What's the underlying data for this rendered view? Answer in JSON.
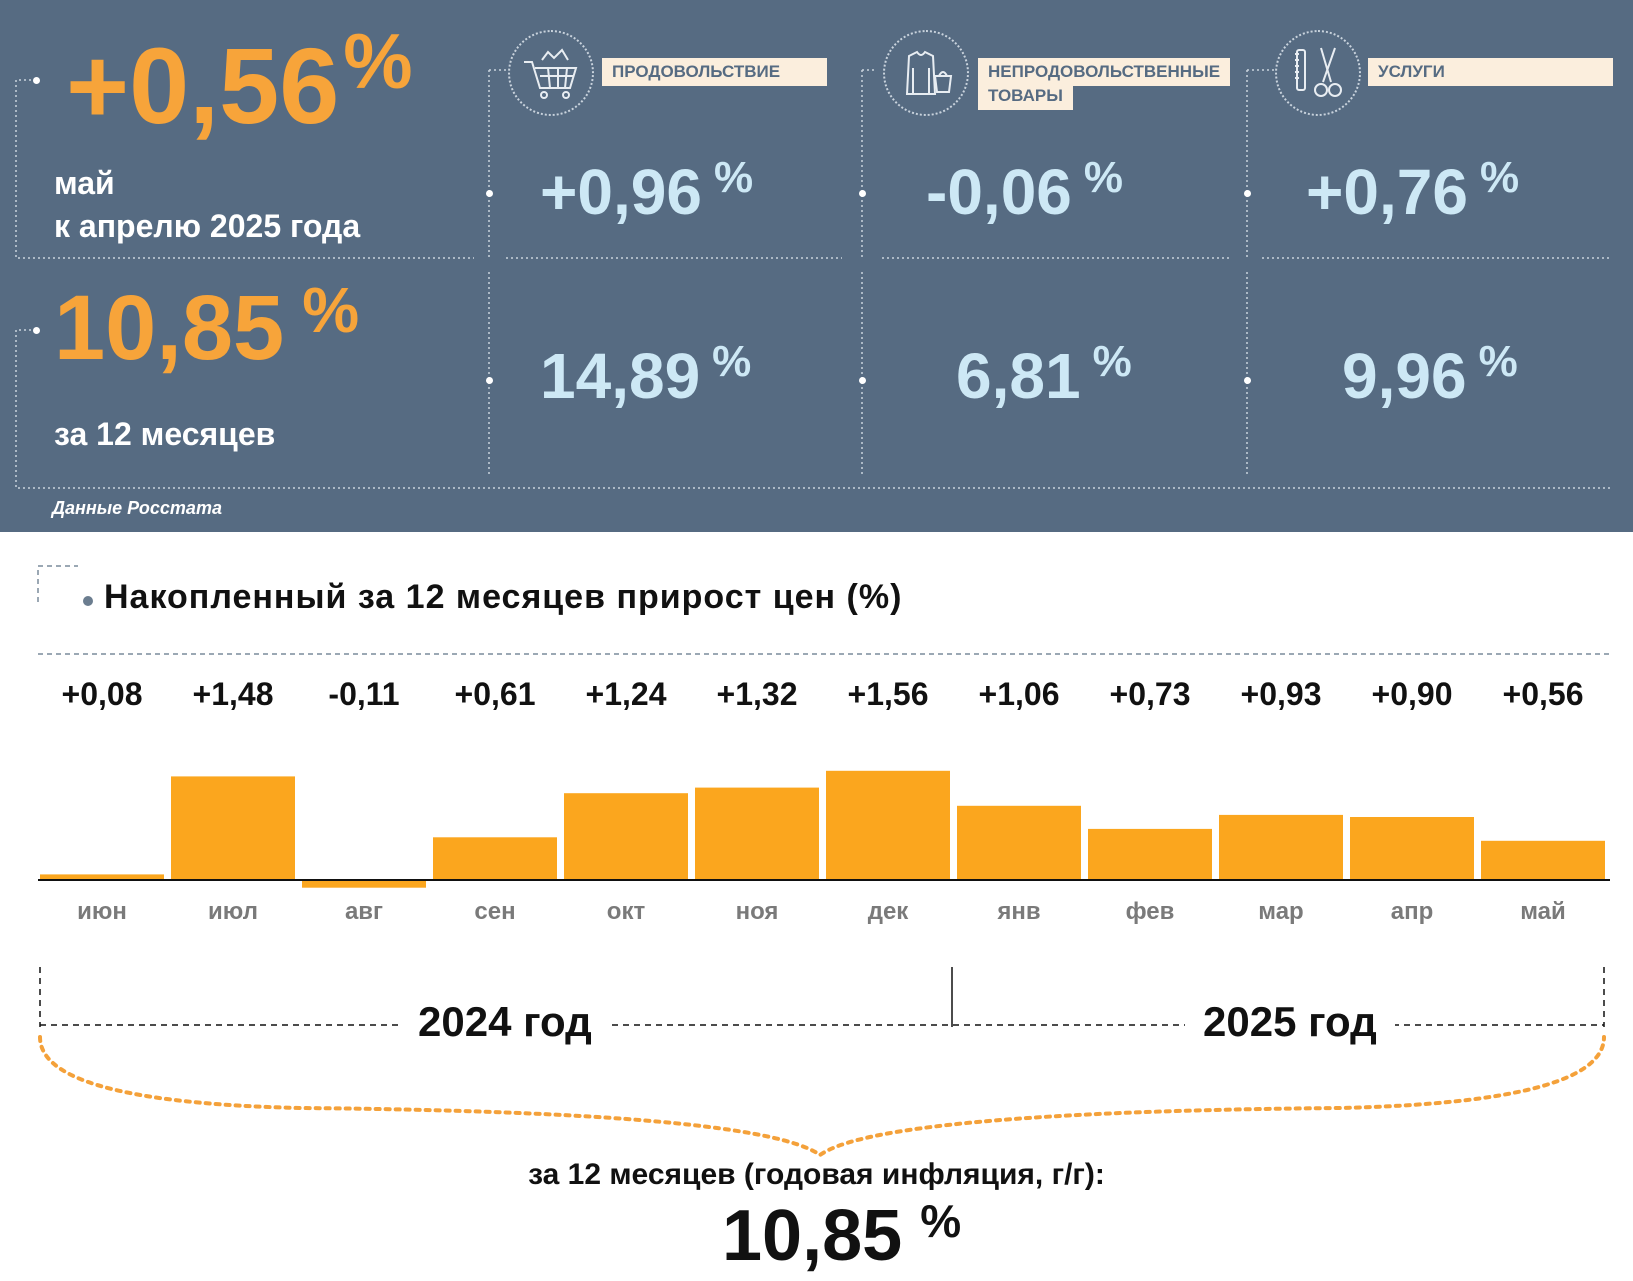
{
  "colors": {
    "panel_bg": "#566b82",
    "accent_orange": "#f7a43a",
    "value_blue": "#cde8f5",
    "label_bg": "#fbeedd",
    "bar": "#fba61e"
  },
  "summary": {
    "month": {
      "value": "+0,56",
      "pct": "%",
      "line1": "май",
      "line2": "к апрелю 2025 года"
    },
    "year": {
      "value": "10,85",
      "pct": "%",
      "label": "за 12 месяцев"
    },
    "categories": [
      {
        "name": "ПРОДОВОЛЬСТВИЕ",
        "icon": "shopping-cart-icon",
        "monthly": "+0,96",
        "annual": "14,89",
        "pct": "%"
      },
      {
        "name": "НЕПРОДОВОЛЬСТВЕННЫЕ ТОВАРЫ",
        "name_line1": "НЕПРОДОВОЛЬСТВЕННЫЕ",
        "name_line2": "ТОВАРЫ",
        "icon": "clothes-bag-icon",
        "monthly": "-0,06",
        "annual": "6,81",
        "pct": "%"
      },
      {
        "name": "УСЛУГИ",
        "icon": "comb-scissors-icon",
        "monthly": "+0,76",
        "annual": "9,96",
        "pct": "%"
      }
    ],
    "source": "Данные Росстата"
  },
  "chart_data": {
    "type": "bar",
    "title": "Накопленный за 12 месяцев прирост цен (%)",
    "categories": [
      "июн",
      "июл",
      "авг",
      "сен",
      "окт",
      "ноя",
      "дек",
      "янв",
      "фев",
      "мар",
      "апр",
      "май"
    ],
    "values": [
      0.08,
      1.48,
      -0.11,
      0.61,
      1.24,
      1.32,
      1.56,
      1.06,
      0.73,
      0.93,
      0.9,
      0.56
    ],
    "value_labels": [
      "+0,08",
      "+1,48",
      "-0,11",
      "+0,61",
      "+1,24",
      "+1,32",
      "+1,56",
      "+1,06",
      "+0,73",
      "+0,93",
      "+0,90",
      "+0,56"
    ],
    "years": [
      "2024 год",
      "2025 год"
    ],
    "grid": false,
    "legend": "none"
  },
  "footer": {
    "label": "за 12 месяцев (годовая инфляция, г/г):",
    "value": "10,85",
    "pct": "%"
  }
}
